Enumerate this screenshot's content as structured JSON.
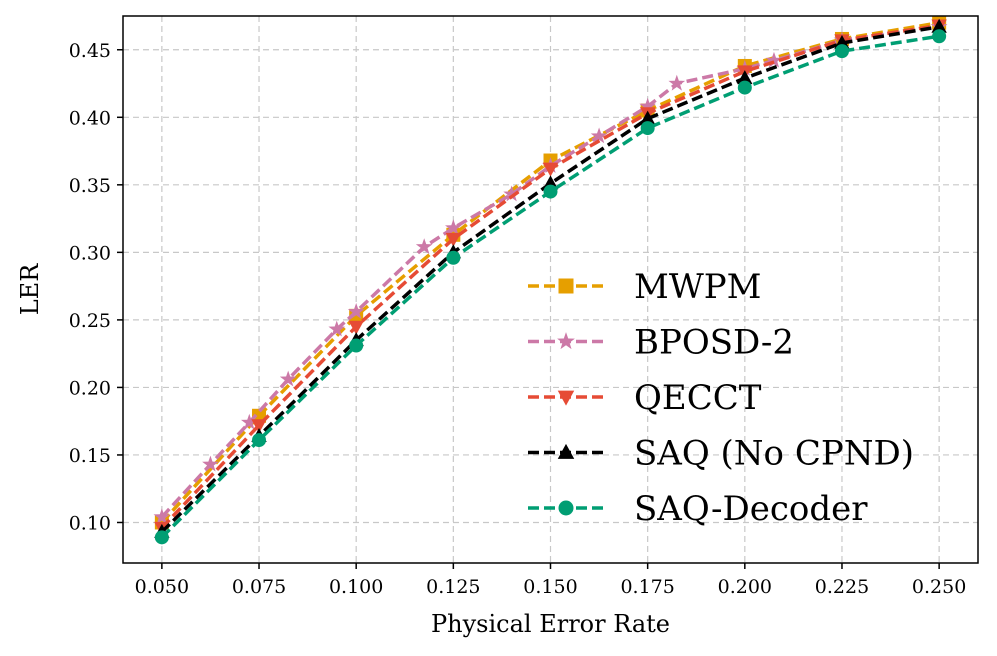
{
  "chart_data": {
    "type": "line",
    "title": "",
    "xlabel": "Physical Error Rate",
    "ylabel": "LER",
    "xlim": [
      0.04,
      0.26
    ],
    "ylim": [
      0.07,
      0.475
    ],
    "xticks": [
      0.05,
      0.075,
      0.1,
      0.125,
      0.15,
      0.175,
      0.2,
      0.225,
      0.25
    ],
    "xtick_labels": [
      "0.050",
      "0.075",
      "0.100",
      "0.125",
      "0.150",
      "0.175",
      "0.200",
      "0.225",
      "0.250"
    ],
    "yticks": [
      0.1,
      0.15,
      0.2,
      0.25,
      0.3,
      0.35,
      0.4,
      0.45
    ],
    "ytick_labels": [
      "0.10",
      "0.15",
      "0.20",
      "0.25",
      "0.30",
      "0.35",
      "0.40",
      "0.45"
    ],
    "grid": true,
    "legend_position": "lower-right",
    "series": [
      {
        "name": "MWPM",
        "color": "#E69F00",
        "marker": "square",
        "x": [
          0.05,
          0.075,
          0.1,
          0.125,
          0.15,
          0.175,
          0.2,
          0.225,
          0.25
        ],
        "y": [
          0.1,
          0.179,
          0.253,
          0.313,
          0.368,
          0.405,
          0.438,
          0.458,
          0.47
        ]
      },
      {
        "name": "BPOSD-2",
        "color": "#CC79A7",
        "marker": "star",
        "x": [
          0.05,
          0.0625,
          0.0725,
          0.0825,
          0.095,
          0.1,
          0.1175,
          0.125,
          0.14,
          0.15,
          0.1625,
          0.175,
          0.1825,
          0.2,
          0.2075,
          0.225,
          0.25
        ],
        "y": [
          0.104,
          0.143,
          0.174,
          0.206,
          0.243,
          0.256,
          0.304,
          0.318,
          0.343,
          0.364,
          0.386,
          0.408,
          0.425,
          0.436,
          0.442,
          0.457,
          0.467
        ]
      },
      {
        "name": "QECCT",
        "color": "#E64B35",
        "marker": "triangle-down",
        "x": [
          0.05,
          0.075,
          0.1,
          0.125,
          0.15,
          0.175,
          0.2,
          0.225,
          0.25
        ],
        "y": [
          0.096,
          0.172,
          0.245,
          0.31,
          0.362,
          0.403,
          0.434,
          0.457,
          0.468
        ]
      },
      {
        "name": "SAQ (No CPND)",
        "color": "#000000",
        "marker": "triangle-up",
        "x": [
          0.05,
          0.075,
          0.1,
          0.125,
          0.15,
          0.175,
          0.2,
          0.225,
          0.25
        ],
        "y": [
          0.093,
          0.164,
          0.235,
          0.3,
          0.351,
          0.399,
          0.429,
          0.455,
          0.467
        ]
      },
      {
        "name": "SAQ-Decoder",
        "color": "#009E73",
        "marker": "circle",
        "x": [
          0.05,
          0.075,
          0.1,
          0.125,
          0.15,
          0.175,
          0.2,
          0.225,
          0.25
        ],
        "y": [
          0.089,
          0.161,
          0.231,
          0.296,
          0.345,
          0.392,
          0.422,
          0.449,
          0.46
        ]
      }
    ]
  }
}
